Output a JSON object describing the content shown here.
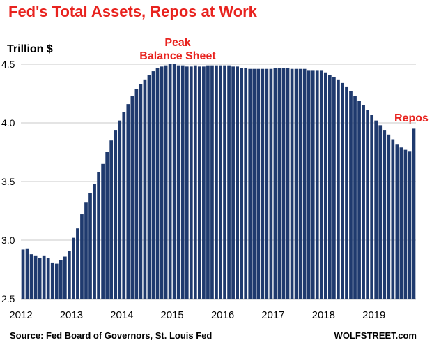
{
  "chart_data": {
    "type": "bar",
    "title": "Fed's Total Assets, Repos at Work",
    "ylabel": "Trillion $",
    "ylim": [
      2.5,
      4.5
    ],
    "yticks": [
      "2.5",
      "3.0",
      "3.5",
      "4.0",
      "4.5"
    ],
    "xticks": [
      "2012",
      "2013",
      "2014",
      "2015",
      "2016",
      "2017",
      "2018",
      "2019"
    ],
    "grid": true,
    "bar_color": "#1f3a6e",
    "annotations": [
      {
        "text": "Peak\nBalance Sheet",
        "near": "2015"
      },
      {
        "text": "Repos",
        "near": "2019-end"
      }
    ],
    "values": [
      2.92,
      2.93,
      2.88,
      2.87,
      2.85,
      2.87,
      2.85,
      2.81,
      2.8,
      2.83,
      2.86,
      2.91,
      3.02,
      3.1,
      3.22,
      3.32,
      3.4,
      3.48,
      3.58,
      3.65,
      3.75,
      3.85,
      3.94,
      4.02,
      4.09,
      4.16,
      4.23,
      4.29,
      4.33,
      4.37,
      4.41,
      4.44,
      4.47,
      4.48,
      4.49,
      4.5,
      4.5,
      4.49,
      4.49,
      4.48,
      4.48,
      4.49,
      4.48,
      4.48,
      4.49,
      4.49,
      4.49,
      4.49,
      4.49,
      4.49,
      4.48,
      4.48,
      4.47,
      4.47,
      4.46,
      4.46,
      4.46,
      4.46,
      4.46,
      4.46,
      4.47,
      4.47,
      4.47,
      4.47,
      4.46,
      4.46,
      4.46,
      4.46,
      4.45,
      4.45,
      4.45,
      4.45,
      4.43,
      4.41,
      4.39,
      4.37,
      4.34,
      4.31,
      4.27,
      4.23,
      4.19,
      4.15,
      4.11,
      4.07,
      4.02,
      3.98,
      3.94,
      3.9,
      3.86,
      3.82,
      3.79,
      3.77,
      3.76,
      3.95
    ]
  },
  "labels": {
    "title": "Fed's Total Assets, Repos at Work",
    "unit": "Trillion $",
    "peak_line1": "Peak",
    "peak_line2": "Balance Sheet",
    "repos": "Repos",
    "source": "Source: Fed Board of Governors, St. Louis Fed",
    "brand": "WOLFSTREET.com"
  },
  "colors": {
    "accent": "#e8231f",
    "bars": "#1f3a6e",
    "grid": "#c8c8c8"
  }
}
